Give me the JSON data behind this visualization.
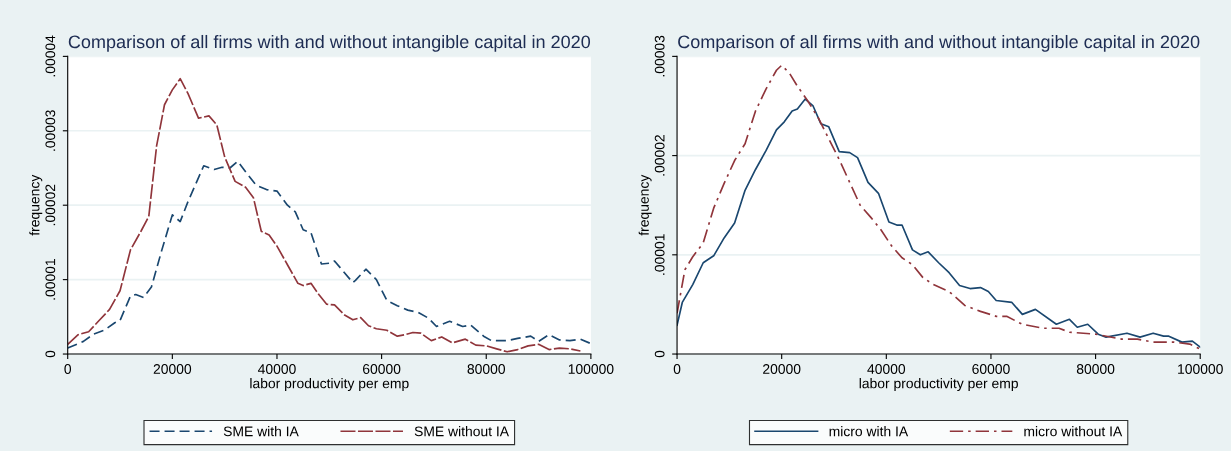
{
  "chart_data": [
    {
      "type": "line",
      "title": "Comparison of all firms with and without intangible capital in 2020",
      "xlabel": "labor productivity per emp",
      "ylabel": "frequency",
      "xlim": [
        0,
        100000
      ],
      "ylim": [
        0,
        4e-05
      ],
      "xticks": [
        0,
        20000,
        40000,
        60000,
        80000,
        100000
      ],
      "yticks": [
        0,
        {
          "value": 1e-05,
          "label": ".00001"
        },
        {
          "value": 2e-05,
          "label": ".00002"
        },
        {
          "value": 3e-05,
          "label": ".00003"
        },
        {
          "value": 4e-05,
          "label": ".00004"
        }
      ],
      "grid": "y",
      "legend": "bottom",
      "series": [
        {
          "name": "SME with IA",
          "color": "#1a476f",
          "line_style": "dashed",
          "x": [
            0,
            3000,
            5000,
            7000,
            9000,
            10000,
            12000,
            13000,
            14500,
            16000,
            18000,
            20000,
            21500,
            23000,
            26000,
            28000,
            29500,
            31000,
            32500,
            34000,
            36000,
            38000,
            40000,
            42000,
            43500,
            45000,
            46500,
            48500,
            50000,
            51000,
            54500,
            55000,
            57000,
            59000,
            61000,
            63000,
            65000,
            67000,
            69000,
            70500,
            73000,
            75500,
            77000,
            79500,
            81000,
            84000,
            86000,
            88500,
            90000,
            92000,
            94000,
            96000,
            98000,
            100000
          ],
          "values": [
            8e-07,
            1.7e-06,
            2.7e-06,
            3.2e-06,
            4.2e-06,
            4.5e-06,
            7.8e-06,
            8e-06,
            7.6e-06,
            9e-06,
            1.4e-05,
            1.87e-05,
            1.78e-05,
            2.05e-05,
            2.53e-05,
            2.48e-05,
            2.51e-05,
            2.5e-05,
            2.59e-05,
            2.45e-05,
            2.27e-05,
            2.21e-05,
            2.19e-05,
            2e-05,
            1.91e-05,
            1.67e-05,
            1.63e-05,
            1.21e-05,
            1.22e-05,
            1.25e-05,
            9.6e-06,
            9.9e-06,
            1.14e-05,
            1e-05,
            7.2e-06,
            6.5e-06,
            5.9e-06,
            5.6e-06,
            4.8e-06,
            3.7e-06,
            4.4e-06,
            3.7e-06,
            3.9e-06,
            2.4e-06,
            1.8e-06,
            1.8e-06,
            2.1e-06,
            2.4e-06,
            1.7e-06,
            2.6e-06,
            1.9e-06,
            1.8e-06,
            2e-06,
            1.4e-06
          ]
        },
        {
          "name": "SME without IA",
          "color": "#90353b",
          "line_style": "longdash",
          "x": [
            0,
            2000,
            4000,
            6000,
            8000,
            10000,
            12000,
            14000,
            15500,
            17000,
            18500,
            20000,
            21500,
            23000,
            25000,
            27000,
            28500,
            30000,
            32000,
            34000,
            35500,
            37000,
            38500,
            40000,
            42000,
            44000,
            45000,
            46500,
            48000,
            49500,
            51000,
            53000,
            54500,
            56000,
            57500,
            59000,
            61000,
            63000,
            64500,
            66000,
            67500,
            69500,
            71500,
            73500,
            76000,
            78000,
            80000,
            82000,
            84000,
            86000,
            88000,
            90000,
            92000,
            94000,
            96000,
            98000
          ],
          "values": [
            1.3e-06,
            2.6e-06,
            3e-06,
            4.5e-06,
            6e-06,
            8.5e-06,
            1.4e-05,
            1.65e-05,
            1.85e-05,
            2.8e-05,
            3.35e-05,
            3.55e-05,
            3.7e-05,
            3.5e-05,
            3.17e-05,
            3.2e-05,
            3.08e-05,
            2.65e-05,
            2.32e-05,
            2.24e-05,
            2.1e-05,
            1.65e-05,
            1.6e-05,
            1.45e-05,
            1.2e-05,
            9.5e-06,
            9.2e-06,
            9.5e-06,
            8e-06,
            6.7e-06,
            6.6e-06,
            5.2e-06,
            4.6e-06,
            4.9e-06,
            3.8e-06,
            3.4e-06,
            3.2e-06,
            2.4e-06,
            2.6e-06,
            2.9e-06,
            2.8e-06,
            1.8e-06,
            2.3e-06,
            1.5e-06,
            2e-06,
            1.2e-06,
            1.1e-06,
            7e-07,
            3e-07,
            6e-07,
            1.1e-06,
            1.3e-06,
            6e-07,
            8e-07,
            7e-07,
            4e-07
          ]
        }
      ]
    },
    {
      "type": "line",
      "title": "Comparison of all firms with and without intangible capital in 2020",
      "xlabel": "labor productivity per emp",
      "ylabel": "frequency",
      "xlim": [
        0,
        100000
      ],
      "ylim": [
        0,
        3e-05
      ],
      "xticks": [
        0,
        20000,
        40000,
        60000,
        80000,
        100000
      ],
      "yticks": [
        0,
        {
          "value": 1e-05,
          "label": ".00001"
        },
        {
          "value": 2e-05,
          "label": ".00002"
        },
        {
          "value": 3e-05,
          "label": ".00003"
        }
      ],
      "grid": "y",
      "legend": "bottom",
      "series": [
        {
          "name": "micro with IA",
          "color": "#1a476f",
          "line_style": "solid",
          "x": [
            0,
            1000,
            3000,
            5000,
            7000,
            9000,
            11000,
            13000,
            15000,
            17000,
            19000,
            20500,
            22000,
            23000,
            24500,
            26000,
            27500,
            29000,
            31000,
            33000,
            34500,
            36500,
            38500,
            40500,
            42000,
            43000,
            45000,
            46500,
            48000,
            50000,
            52000,
            54000,
            56000,
            58000,
            59500,
            61000,
            64000,
            66000,
            68500,
            72500,
            75000,
            76500,
            78500,
            80500,
            82000,
            86000,
            88500,
            91000,
            93000,
            94000,
            96500,
            98500,
            100000
          ],
          "values": [
            2.9e-06,
            5.2e-06,
            7e-06,
            9.2e-06,
            9.9e-06,
            1.17e-05,
            1.32e-05,
            1.65e-05,
            1.86e-05,
            2.05e-05,
            2.26e-05,
            2.34e-05,
            2.45e-05,
            2.47e-05,
            2.57e-05,
            2.5e-05,
            2.32e-05,
            2.29e-05,
            2.04e-05,
            2.03e-05,
            1.98e-05,
            1.73e-05,
            1.62e-05,
            1.33e-05,
            1.3e-05,
            1.3e-05,
            1.05e-05,
            1e-05,
            1.03e-05,
            9.2e-06,
            8.2e-06,
            6.9e-06,
            6.6e-06,
            6.7e-06,
            6.3e-06,
            5.4e-06,
            5.2e-06,
            4e-06,
            4.5e-06,
            3e-06,
            3.5e-06,
            2.7e-06,
            3e-06,
            2e-06,
            1.7e-06,
            2.1e-06,
            1.7e-06,
            2.1e-06,
            1.8e-06,
            1.8e-06,
            1.2e-06,
            1.3e-06,
            7e-07
          ]
        },
        {
          "name": "micro without IA",
          "color": "#90353b",
          "line_style": "dashdot",
          "x": [
            0,
            1500,
            3000,
            5000,
            7000,
            9000,
            11000,
            13000,
            15000,
            17000,
            19000,
            20000,
            21500,
            23000,
            25000,
            27000,
            29000,
            31000,
            33000,
            35000,
            37000,
            39000,
            41000,
            43000,
            45000,
            47000,
            49000,
            52000,
            55000,
            58000,
            61000,
            63000,
            66000,
            70000,
            73000,
            75000,
            80000,
            85000,
            88000,
            91000,
            95000,
            98000,
            100000
          ],
          "values": [
            4.1e-06,
            8.5e-06,
            9.8e-06,
            1.12e-05,
            1.47e-05,
            1.72e-05,
            1.95e-05,
            2.12e-05,
            2.45e-05,
            2.67e-05,
            2.86e-05,
            2.91e-05,
            2.83e-05,
            2.7e-05,
            2.55e-05,
            2.38e-05,
            2.17e-05,
            1.96e-05,
            1.73e-05,
            1.5e-05,
            1.38e-05,
            1.25e-05,
            1.09e-05,
            9.7e-06,
            9e-06,
            7.7e-06,
            7e-06,
            6.3e-06,
            4.9e-06,
            4.3e-06,
            3.8e-06,
            3.8e-06,
            3e-06,
            2.6e-06,
            2.6e-06,
            2.2e-06,
            2e-06,
            1.5e-06,
            1.5e-06,
            1.2e-06,
            1.2e-06,
            1e-06,
            5e-07
          ]
        }
      ]
    }
  ]
}
